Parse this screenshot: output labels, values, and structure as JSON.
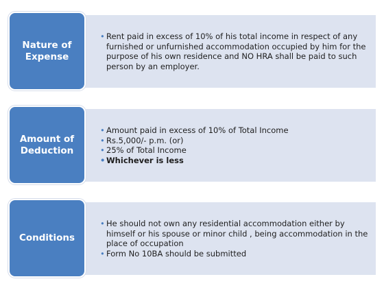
{
  "rows": [
    {
      "label": "Nature of Expense",
      "items": [
        {
          "text": "Rent paid in excess of 10% of his total income in respect of any furnished or unfurnished accommodation occupied by him for the purpose of his own residence and NO HRA shall be paid to such person by an employer."
        }
      ]
    },
    {
      "label": "Amount of Deduction",
      "items": [
        {
          "text": "Amount paid in excess of 10% of Total Income"
        },
        {
          "text": "Rs.5,000/- p.m. (or)"
        },
        {
          "text": "25% of Total Income"
        },
        {
          "text": "Whichever is less",
          "bold": true
        }
      ]
    },
    {
      "label": "Conditions",
      "items": [
        {
          "text": "He should not own any residential accommodation either by himself or his spouse or minor child , being accommodation in the place of occupation"
        },
        {
          "text": "Form No 10BA should be submitted"
        }
      ]
    }
  ]
}
